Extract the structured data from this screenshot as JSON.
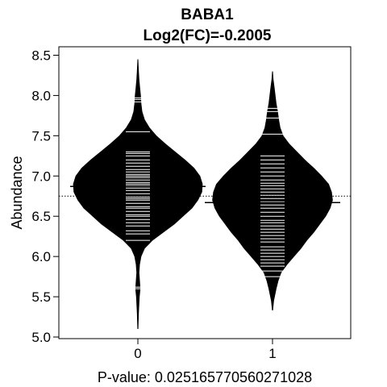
{
  "chart_data": {
    "type": "beanplot",
    "title": "BABA1",
    "subtitle": "Log2(FC)=-0.2005",
    "xlabel": "P-value: 0.0251657705602710​28",
    "ylabel": "Abundance",
    "ylim": [
      5.0,
      8.55
    ],
    "xlim": [
      -0.6,
      1.6
    ],
    "yticks": [
      5.0,
      5.5,
      6.0,
      6.5,
      7.0,
      7.5,
      8.0,
      8.5
    ],
    "ytick_labels": [
      "5.0",
      "5.5",
      "6.0",
      "6.5",
      "7.0",
      "7.5",
      "8.0",
      "8.5"
    ],
    "categories": [
      "0",
      "1"
    ],
    "overall_mean": 6.75,
    "series": [
      {
        "category": "0",
        "mean": 6.87,
        "density": [
          [
            5.1,
            0.005
          ],
          [
            5.3,
            0.01
          ],
          [
            5.5,
            0.018
          ],
          [
            5.6,
            0.026
          ],
          [
            5.7,
            0.02
          ],
          [
            5.8,
            0.015
          ],
          [
            5.9,
            0.02
          ],
          [
            6.0,
            0.035
          ],
          [
            6.1,
            0.07
          ],
          [
            6.2,
            0.15
          ],
          [
            6.3,
            0.26
          ],
          [
            6.4,
            0.37
          ],
          [
            6.5,
            0.46
          ],
          [
            6.6,
            0.55
          ],
          [
            6.7,
            0.61
          ],
          [
            6.8,
            0.65
          ],
          [
            6.9,
            0.655
          ],
          [
            7.0,
            0.63
          ],
          [
            7.1,
            0.57
          ],
          [
            7.2,
            0.48
          ],
          [
            7.3,
            0.38
          ],
          [
            7.4,
            0.28
          ],
          [
            7.5,
            0.19
          ],
          [
            7.6,
            0.12
          ],
          [
            7.7,
            0.07
          ],
          [
            7.8,
            0.045
          ],
          [
            7.9,
            0.035
          ],
          [
            8.0,
            0.03
          ],
          [
            8.1,
            0.022
          ],
          [
            8.2,
            0.015
          ],
          [
            8.3,
            0.01
          ],
          [
            8.45,
            0.004
          ]
        ],
        "points": [
          5.6,
          5.62,
          6.2,
          6.28,
          6.32,
          6.38,
          6.42,
          6.46,
          6.5,
          6.52,
          6.56,
          6.6,
          6.62,
          6.66,
          6.7,
          6.72,
          6.74,
          6.78,
          6.82,
          6.85,
          6.88,
          6.9,
          6.92,
          6.95,
          6.98,
          7.0,
          7.02,
          7.05,
          7.08,
          7.12,
          7.16,
          7.2,
          7.25,
          7.28,
          7.3,
          7.55,
          7.92,
          7.95,
          7.97
        ]
      },
      {
        "category": "1",
        "mean": 6.67,
        "density": [
          [
            5.33,
            0.005
          ],
          [
            5.45,
            0.015
          ],
          [
            5.6,
            0.04
          ],
          [
            5.7,
            0.06
          ],
          [
            5.8,
            0.09
          ],
          [
            5.9,
            0.15
          ],
          [
            6.0,
            0.22
          ],
          [
            6.1,
            0.29
          ],
          [
            6.2,
            0.35
          ],
          [
            6.3,
            0.42
          ],
          [
            6.4,
            0.48
          ],
          [
            6.5,
            0.54
          ],
          [
            6.6,
            0.585
          ],
          [
            6.7,
            0.61
          ],
          [
            6.8,
            0.6
          ],
          [
            6.9,
            0.57
          ],
          [
            7.0,
            0.5
          ],
          [
            7.1,
            0.42
          ],
          [
            7.2,
            0.33
          ],
          [
            7.3,
            0.25
          ],
          [
            7.4,
            0.17
          ],
          [
            7.5,
            0.11
          ],
          [
            7.6,
            0.08
          ],
          [
            7.7,
            0.065
          ],
          [
            7.8,
            0.055
          ],
          [
            7.9,
            0.04
          ],
          [
            8.0,
            0.03
          ],
          [
            8.1,
            0.02
          ],
          [
            8.2,
            0.01
          ],
          [
            8.3,
            0.004
          ]
        ],
        "points": [
          5.75,
          5.82,
          5.88,
          5.92,
          5.96,
          6.0,
          6.04,
          6.08,
          6.12,
          6.18,
          6.22,
          6.26,
          6.3,
          6.34,
          6.38,
          6.42,
          6.45,
          6.5,
          6.55,
          6.6,
          6.64,
          6.68,
          6.72,
          6.76,
          6.8,
          6.84,
          6.88,
          6.91,
          6.95,
          7.0,
          7.05,
          7.1,
          7.15,
          7.2,
          7.25,
          7.52,
          7.72,
          7.8,
          7.84
        ]
      }
    ]
  }
}
